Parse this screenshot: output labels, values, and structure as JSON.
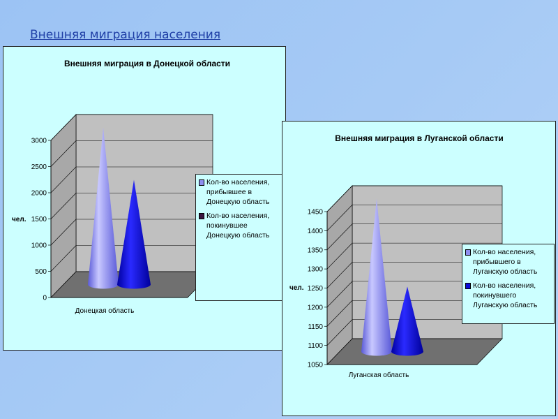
{
  "slide": {
    "title": "Внешняя миграция населения"
  },
  "colors": {
    "arrived": "#8e8ef0",
    "left": "#0a0ad8"
  },
  "chart_data": [
    {
      "id": "donetsk",
      "type": "bar",
      "style": "3d-cone",
      "title": "Внешняя миграция в Донецкой области",
      "ylabel": "чел.",
      "ylim": [
        0,
        3000
      ],
      "yticks": [
        0,
        500,
        1000,
        1500,
        2000,
        2500,
        3000
      ],
      "categories": [
        "Донецкая область"
      ],
      "series": [
        {
          "name": "Кол-во населения, прибывшее в Донецкую область",
          "values": [
            3000
          ]
        },
        {
          "name": "Кол-во населения, покинувшее Донецкую область",
          "values": [
            2000
          ]
        }
      ],
      "legend_position": "right",
      "grid": true
    },
    {
      "id": "lugansk",
      "type": "bar",
      "style": "3d-cone",
      "title": "Внешняя миграция в Луганской области",
      "ylabel": "чел.",
      "ylim": [
        1050,
        1450
      ],
      "yticks": [
        1050,
        1100,
        1150,
        1200,
        1250,
        1300,
        1350,
        1400,
        1450
      ],
      "categories": [
        "Луганская область"
      ],
      "series": [
        {
          "name": "Кол-во населения, прибывшего в Луганскую область",
          "values": [
            1450
          ]
        },
        {
          "name": "Кол-во населения, покинувшего Луганскую область",
          "values": [
            1220
          ]
        }
      ],
      "legend_position": "right",
      "grid": true
    }
  ]
}
